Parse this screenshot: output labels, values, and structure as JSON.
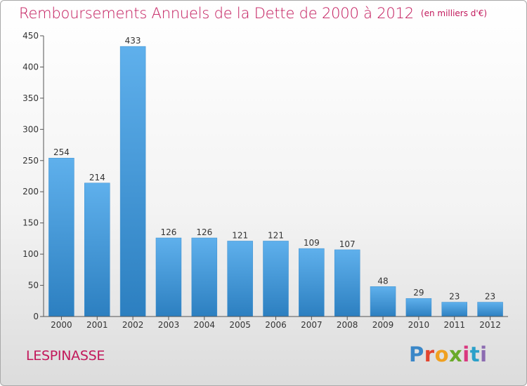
{
  "header": {
    "title": "Remboursements Annuels de la Dette de 2000 à 2012",
    "subtitle": "(en milliers d'€)"
  },
  "commune": "LESPINASSE",
  "logo": {
    "text": "Proxiti",
    "letter_colors": [
      "#3a87c8",
      "#e2442f",
      "#f0a020",
      "#6aaa2a",
      "#d9377f",
      "#2ba0c9",
      "#8c6bb1"
    ]
  },
  "colors": {
    "bar_top": "#5fb0ec",
    "bar_bottom": "#2c7fc0",
    "axis": "#555555",
    "grid": "#cccccc",
    "accent": "#c2185b"
  },
  "chart_data": {
    "type": "bar",
    "categories": [
      "2000",
      "2001",
      "2002",
      "2003",
      "2004",
      "2005",
      "2006",
      "2007",
      "2008",
      "2009",
      "2010",
      "2011",
      "2012"
    ],
    "values": [
      254,
      214,
      433,
      126,
      126,
      121,
      121,
      109,
      107,
      48,
      29,
      23,
      23
    ],
    "yticks": [
      0,
      50,
      100,
      150,
      200,
      250,
      300,
      350,
      400,
      450
    ],
    "ylim": [
      0,
      450
    ],
    "xlabel": "",
    "ylabel": "",
    "grid": false,
    "legend": "none"
  }
}
